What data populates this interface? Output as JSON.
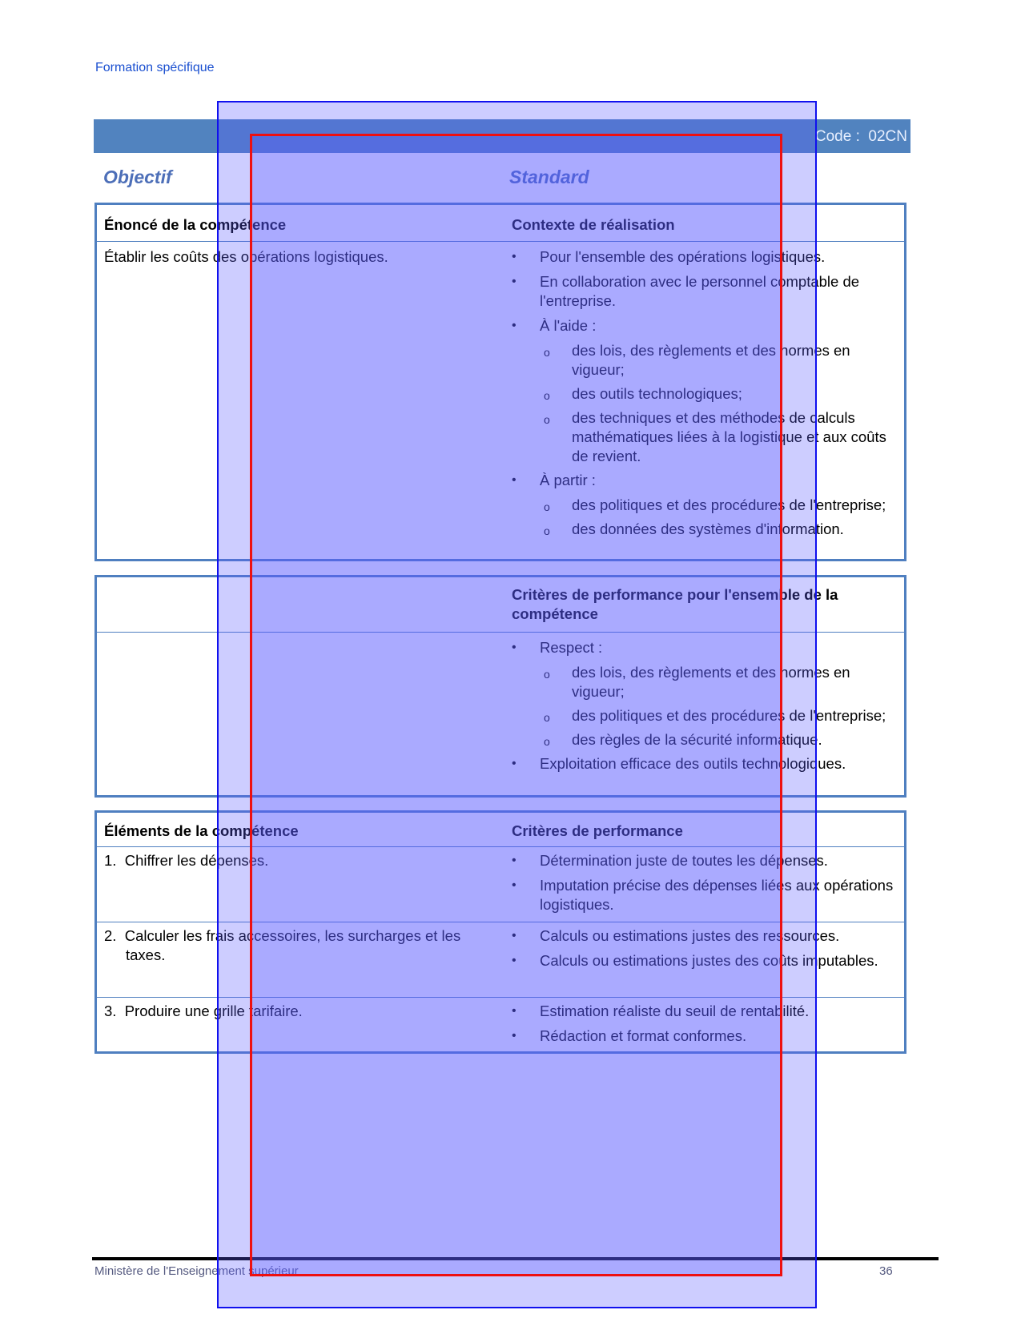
{
  "header": {
    "running_head": "Formation spécifique",
    "code_label": "Code :",
    "code_value": "02CN"
  },
  "sections": {
    "objective": "Objectif",
    "standard": "Standard"
  },
  "table1": {
    "left_header": "Énoncé de la compétence",
    "right_header": "Contexte de réalisation",
    "statement": "Établir les coûts des opérations logistiques.",
    "context": [
      {
        "text": "Pour l'ensemble des opérations logistiques.",
        "sub": []
      },
      {
        "text": "En collaboration avec le personnel comptable de l'entreprise.",
        "sub": []
      },
      {
        "text": "À l'aide :",
        "sub": [
          "des lois, des règlements et des normes en vigueur;",
          "des outils technologiques;",
          "des techniques et des méthodes de calculs mathématiques liées à la logistique et aux coûts de revient."
        ]
      },
      {
        "text": "À partir :",
        "sub": [
          "des politiques et des procédures de l'entreprise;",
          "des données des systèmes d'information."
        ]
      }
    ]
  },
  "table2": {
    "right_header": "Critères de performance pour l'ensemble de la compétence",
    "criteria": [
      {
        "text": "Respect :",
        "sub": [
          "des lois, des règlements et des normes en vigueur;",
          "des politiques et des procédures de l'entreprise;",
          "des règles de la sécurité informatique."
        ]
      },
      {
        "text": "Exploitation efficace des outils technologiques.",
        "sub": []
      }
    ]
  },
  "table3": {
    "left_header": "Éléments de la compétence",
    "right_header": "Critères de performance",
    "rows": [
      {
        "element": "1.  Chiffrer les dépenses.",
        "criteria": [
          "Détermination juste de toutes les dépenses.",
          "Imputation précise des dépenses liées aux opérations logistiques."
        ]
      },
      {
        "element": "2.  Calculer les frais accessoires, les surcharges et les taxes.",
        "criteria": [
          "Calculs ou estimations justes des ressources.",
          "Calculs ou estimations justes des coûts imputables."
        ]
      },
      {
        "element": "3.  Produire une grille tarifaire.",
        "criteria": [
          "Estimation réaliste du seuil de rentabilité.",
          "Rédaction et format conformes."
        ]
      }
    ]
  },
  "footer": {
    "ministry": "Ministère de l'Enseignement supérieur",
    "page_number": "36"
  },
  "colors": {
    "band": "#5183bf",
    "border": "#4f7fc0",
    "section_title": "#4d6fb8"
  }
}
